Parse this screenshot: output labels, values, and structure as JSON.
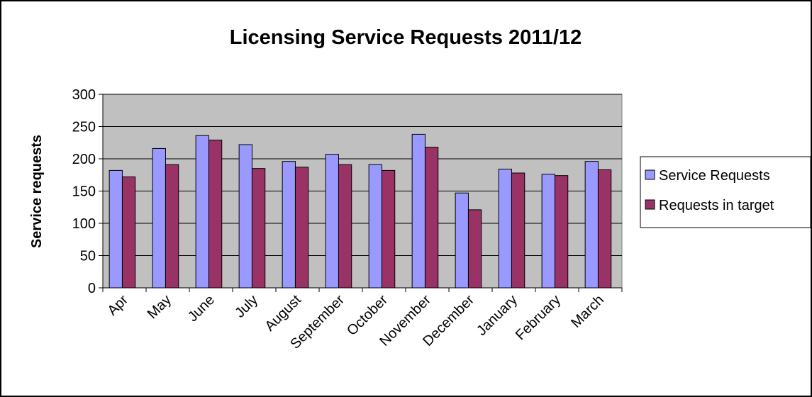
{
  "chart_data": {
    "type": "bar",
    "title": "Licensing Service Requests 2011/12",
    "xlabel": "",
    "ylabel": "Service requests",
    "ylim": [
      0,
      300
    ],
    "yticks": [
      0,
      50,
      100,
      150,
      200,
      250,
      300
    ],
    "categories": [
      "Apr",
      "May",
      "June",
      "July",
      "August",
      "September",
      "October",
      "November",
      "December",
      "January",
      "February",
      "March"
    ],
    "series": [
      {
        "name": "Service Requests",
        "color": "#9999ff",
        "values": [
          182,
          216,
          236,
          222,
          196,
          207,
          191,
          238,
          147,
          184,
          176,
          196
        ]
      },
      {
        "name": "Requests in target",
        "color": "#993366",
        "values": [
          172,
          191,
          229,
          185,
          187,
          191,
          182,
          218,
          121,
          178,
          174,
          183
        ]
      }
    ],
    "grid": true,
    "plot_background": "#c0c0c0",
    "legend_position": "right"
  }
}
